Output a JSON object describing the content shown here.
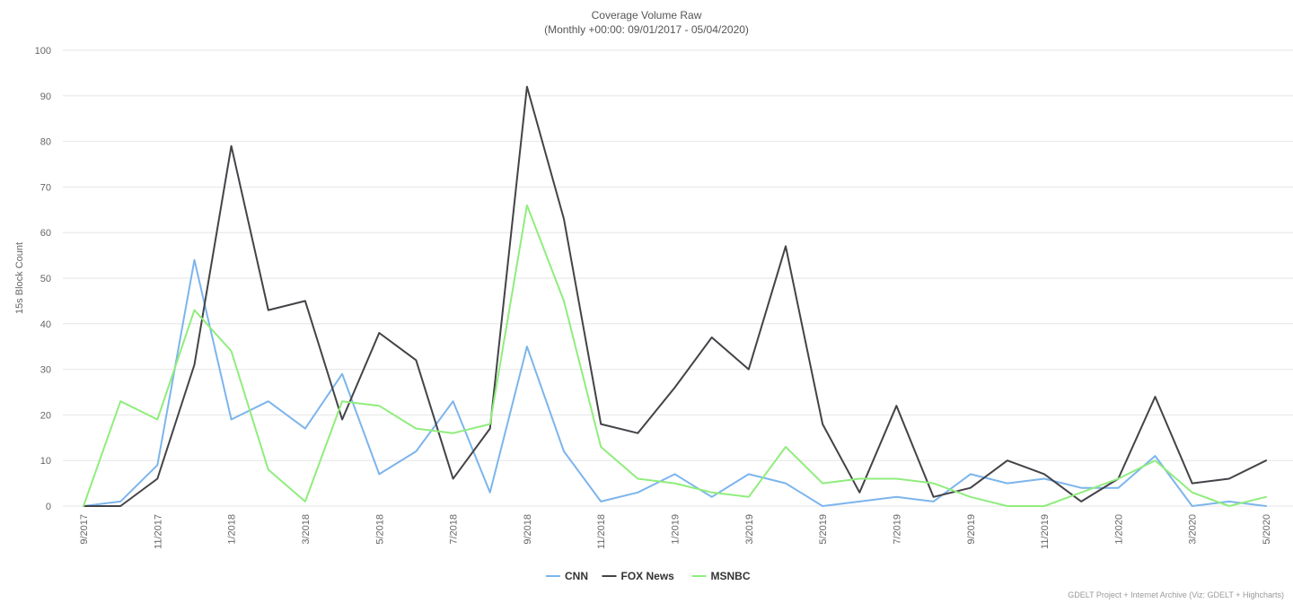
{
  "chart_data": {
    "type": "line",
    "title": "Coverage Volume Raw",
    "subtitle": "(Monthly +00:00: 09/01/2017 - 05/04/2020)",
    "ylabel": "15s Block Count",
    "xlabel": "",
    "ylim": [
      0,
      100
    ],
    "yticks": [
      0,
      10,
      20,
      30,
      40,
      50,
      60,
      70,
      80,
      90,
      100
    ],
    "grid": true,
    "legend_position": "bottom-center",
    "x": [
      "9/2017",
      "10/2017",
      "11/2017",
      "12/2017",
      "1/2018",
      "2/2018",
      "3/2018",
      "4/2018",
      "5/2018",
      "6/2018",
      "7/2018",
      "8/2018",
      "9/2018",
      "10/2018",
      "11/2018",
      "12/2018",
      "1/2019",
      "2/2019",
      "3/2019",
      "4/2019",
      "5/2019",
      "6/2019",
      "7/2019",
      "8/2019",
      "9/2019",
      "10/2019",
      "11/2019",
      "12/2019",
      "1/2020",
      "2/2020",
      "3/2020",
      "4/2020",
      "5/2020"
    ],
    "x_tick_labels": [
      "9/2017",
      "11/2017",
      "1/2018",
      "3/2018",
      "5/2018",
      "7/2018",
      "9/2018",
      "11/2018",
      "1/2019",
      "3/2019",
      "5/2019",
      "7/2019",
      "9/2019",
      "11/2019",
      "1/2020",
      "3/2020",
      "5/2020"
    ],
    "series": [
      {
        "name": "CNN",
        "color": "#7cb5ec",
        "values": [
          0,
          1,
          9,
          54,
          19,
          23,
          17,
          29,
          7,
          12,
          23,
          3,
          35,
          12,
          1,
          3,
          7,
          2,
          7,
          5,
          0,
          1,
          2,
          1,
          7,
          5,
          6,
          4,
          4,
          11,
          0,
          1,
          0
        ]
      },
      {
        "name": "FOX News",
        "color": "#434348",
        "values": [
          0,
          0,
          6,
          31,
          79,
          43,
          45,
          19,
          38,
          32,
          6,
          17,
          92,
          63,
          18,
          16,
          26,
          37,
          30,
          57,
          18,
          3,
          22,
          2,
          4,
          10,
          7,
          1,
          6,
          24,
          5,
          6,
          10
        ]
      },
      {
        "name": "MSNBC",
        "color": "#90ed7d",
        "values": [
          0,
          23,
          19,
          43,
          34,
          8,
          1,
          23,
          22,
          17,
          16,
          18,
          66,
          45,
          13,
          6,
          5,
          3,
          2,
          13,
          5,
          6,
          6,
          5,
          2,
          0,
          0,
          3,
          6,
          10,
          3,
          0,
          2
        ]
      }
    ]
  },
  "credits": "GDELT Project + Internet Archive (Viz: GDELT + Highcharts)"
}
